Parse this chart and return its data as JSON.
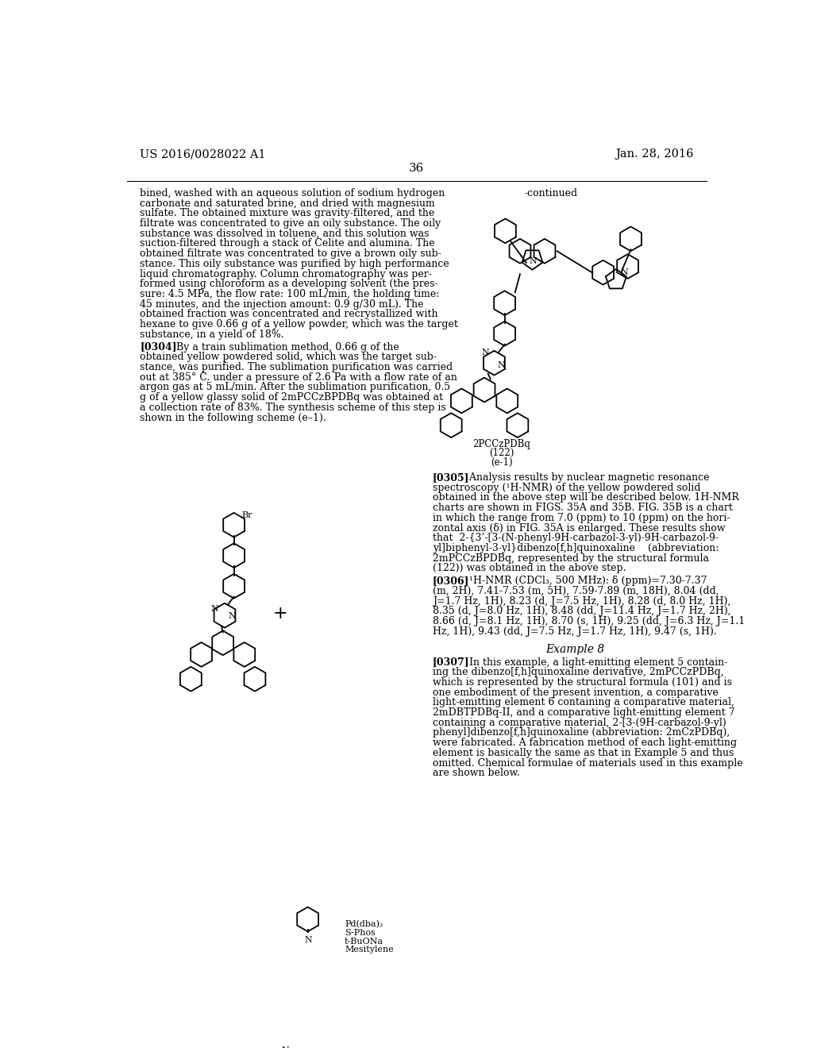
{
  "page_header_left": "US 2016/0028022 A1",
  "page_header_right": "Jan. 28, 2016",
  "page_number": "36",
  "background_color": "#ffffff",
  "text_color": "#000000",
  "continued_label": "-continued",
  "compound_label": "2PCCzPDBq",
  "compound_number": "(122)",
  "compound_sublabel": "(e-1)",
  "reaction_reagents": "Pd(dba)₂",
  "reaction_reagents2": "S-Phos",
  "reaction_reagents3": "t-BuONa",
  "reaction_reagents4": "Mesitylene",
  "example_8_header": "Example 8",
  "left_col_lines": [
    "bined, washed with an aqueous solution of sodium hydrogen",
    "carbonate and saturated brine, and dried with magnesium",
    "sulfate. The obtained mixture was gravity-filtered, and the",
    "filtrate was concentrated to give an oily substance. The oily",
    "substance was dissolved in toluene, and this solution was",
    "suction-filtered through a stack of Celite and alumina. The",
    "obtained filtrate was concentrated to give a brown oily sub-",
    "stance. This oily substance was purified by high performance",
    "liquid chromatography. Column chromatography was per-",
    "formed using chloroform as a developing solvent (the pres-",
    "sure: 4.5 MPa, the flow rate: 100 mL/min, the holding time:",
    "45 minutes, and the injection amount: 0.9 g/30 mL). The",
    "obtained fraction was concentrated and recrystallized with",
    "hexane to give 0.66 g of a yellow powder, which was the target",
    "substance, in a yield of 18%."
  ],
  "p0304_lines": [
    "[0304]   By a train sublimation method, 0.66 g of the",
    "obtained yellow powdered solid, which was the target sub-",
    "stance, was purified. The sublimation purification was carried",
    "out at 385° C. under a pressure of 2.6 Pa with a flow rate of an",
    "argon gas at 5 mL/min. After the sublimation purification, 0.5",
    "g of a yellow glassy solid of 2mPCCzBPDBq was obtained at",
    "a collection rate of 83%. The synthesis scheme of this step is",
    "shown in the following scheme (e–1)."
  ],
  "p0305_lines": [
    "[0305]   Analysis results by nuclear magnetic resonance",
    "spectroscopy (¹H-NMR) of the yellow powdered solid",
    "obtained in the above step will be described below. 1H-NMR",
    "charts are shown in FIGS. 35A and 35B. FIG. 35B is a chart",
    "in which the range from 7.0 (ppm) to 10 (ppm) on the hori-",
    "zontal axis (δ) in FIG. 35A is enlarged. These results show",
    "that  2-{3’-[3-(N-phenyl-9H-carbazol-3-yl)-9H-carbazol-9-",
    "yl]biphenyl-3-yl}dibenzo[f,h]quinoxaline    (abbreviation:",
    "2mPCCzBPDBq, represented by the structural formula",
    "(122)) was obtained in the above step."
  ],
  "p0306_lines": [
    "[0306]   ¹H-NMR (CDCl₃, 500 MHz): δ (ppm)=7.30-7.37",
    "(m, 2H), 7.41-7.53 (m, 5H), 7.59-7.89 (m, 18H), 8.04 (dd,",
    "J=1.7 Hz, 1H), 8.23 (d, J=7.5 Hz, 1H), 8.28 (d, 8.0 Hz, 1H),",
    "8.35 (d, J=8.0 Hz, 1H), 8.48 (dd, J=11.4 Hz, J=1.7 Hz, 2H),",
    "8.66 (d, J=8.1 Hz, 1H), 8.70 (s, 1H), 9.25 (dd, J=6.3 Hz, J=1.1",
    "Hz, 1H), 9.43 (dd, J=7.5 Hz, J=1.7 Hz, 1H), 9.47 (s, 1H)."
  ],
  "p0307_lines": [
    "[0307]   In this example, a light-emitting element 5 contain-",
    "ing the dibenzo[f,h]quinoxaline derivative, 2mPCCzPDBq,",
    "which is represented by the structural formula (101) and is",
    "one embodiment of the present invention, a comparative",
    "light-emitting element 6 containing a comparative material,",
    "2mDBTPDBq-II, and a comparative light-emitting element 7",
    "containing a comparative material, 2-[3-(9H-carbazol-9-yl)",
    "phenyl]dibenzo[f,h]quinoxaline (abbreviation: 2mCzPDBq),",
    "were fabricated. A fabrication method of each light-emitting",
    "element is basically the same as that in Example 5 and thus",
    "omitted. Chemical formulae of materials used in this example",
    "are shown below."
  ]
}
